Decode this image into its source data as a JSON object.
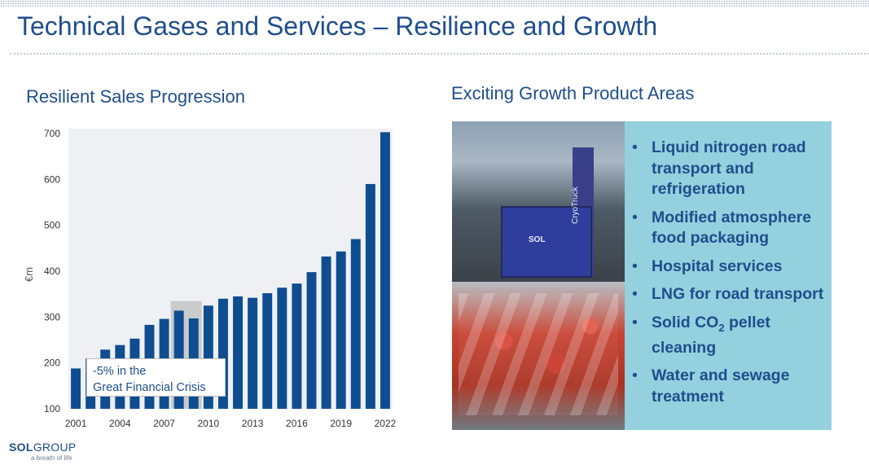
{
  "slide": {
    "title": "Technical Gases and Services – Resilience and Growth",
    "left_heading": "Resilient Sales Progression",
    "right_heading": "Exciting Growth Product Areas"
  },
  "chart_data": {
    "type": "bar",
    "title": "",
    "ylabel": "€m",
    "xlabel": "",
    "ylim": [
      100,
      700
    ],
    "yticks": [
      "100",
      "200",
      "300",
      "400",
      "500",
      "600",
      "700"
    ],
    "xtick_labels": [
      "2001",
      "2004",
      "2007",
      "2010",
      "2013",
      "2016",
      "2019",
      "2022"
    ],
    "categories": [
      "2001",
      "2002",
      "2003",
      "2004",
      "2005",
      "2006",
      "2007",
      "2008",
      "2009",
      "2010",
      "2011",
      "2012",
      "2013",
      "2014",
      "2015",
      "2016",
      "2017",
      "2018",
      "2019",
      "2020",
      "2021",
      "2022"
    ],
    "values": [
      188,
      210,
      229,
      239,
      253,
      283,
      296,
      314,
      297,
      325,
      340,
      345,
      342,
      352,
      364,
      373,
      398,
      432,
      443,
      470,
      590,
      703
    ],
    "highlight_categories": [
      "2008",
      "2009"
    ],
    "highlight_level": 335,
    "bar_color": "#0f4d90",
    "highlight_color": "#c9cbcd",
    "annotation": [
      "-5% in the",
      "Great Financial Crisis"
    ],
    "grid": false
  },
  "photos": {
    "machine_brand": "SOL",
    "machine_label": "CryoTruck"
  },
  "product_areas": [
    {
      "text": "Liquid nitrogen road transport and refrigeration"
    },
    {
      "text": "Modified atmosphere food packaging"
    },
    {
      "text": "Hospital services"
    },
    {
      "text": "LNG for road transport"
    },
    {
      "text_before": "Solid CO",
      "subscript": "2",
      "text_after": " pellet cleaning"
    },
    {
      "text": "Water and sewage treatment"
    }
  ],
  "bullet_char": "•",
  "logo": {
    "bold": "SOL",
    "rest": "GROUP",
    "tagline": "a breath of life"
  }
}
